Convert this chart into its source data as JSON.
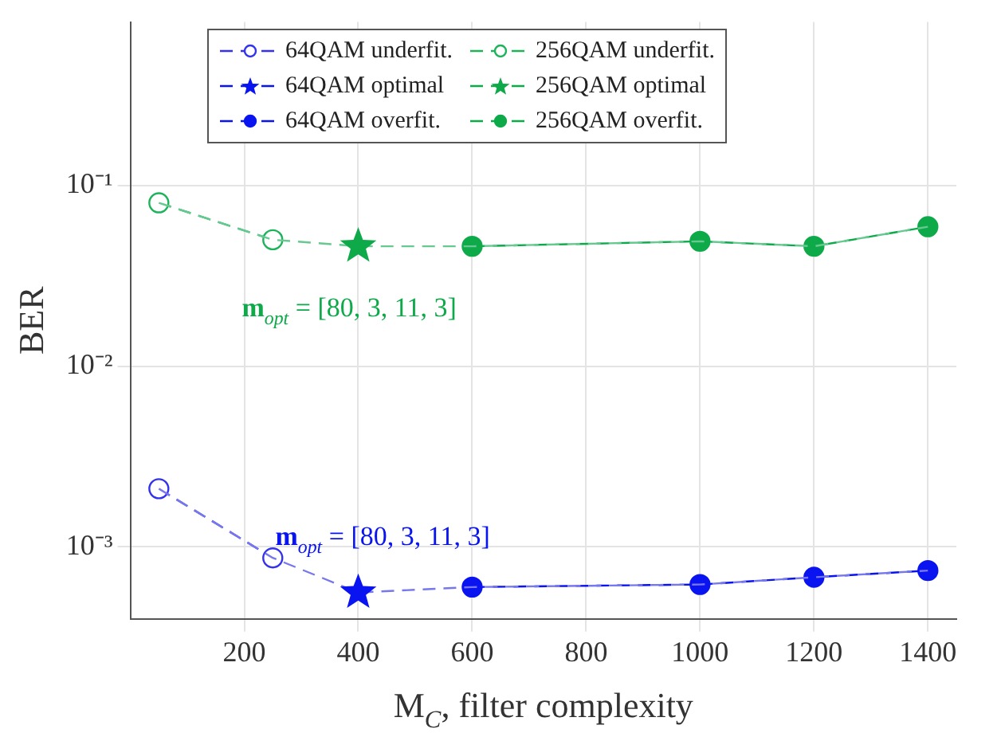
{
  "chart_data": {
    "type": "line",
    "xlabel": "M$_{C}$, filter complexity",
    "ylabel": "BER",
    "log": "y",
    "grid": true,
    "legend": "top",
    "line_style": "dashed",
    "xlim": [
      0,
      1450
    ],
    "xticks": [
      200,
      400,
      600,
      800,
      1000,
      1200,
      1400
    ],
    "ylim": [
      0.0004,
      0.8
    ],
    "yticks": [
      {
        "value": 0.001,
        "label": "10⁻³"
      },
      {
        "value": 0.01,
        "label": "10⁻²"
      },
      {
        "value": 0.1,
        "label": "10⁻¹"
      }
    ],
    "series": [
      {
        "color": "#7777ee",
        "marker": "none",
        "x": [
          50,
          250,
          400,
          600,
          1000,
          1200,
          1400
        ],
        "values": [
          0.0021,
          0.00087,
          0.00056,
          0.0006,
          0.00062,
          0.00068,
          0.00074
        ]
      },
      {
        "color": "#66c990",
        "marker": "none",
        "x": [
          50,
          250,
          400,
          600,
          1000,
          1200,
          1400
        ],
        "values": [
          0.08,
          0.05,
          0.046,
          0.046,
          0.049,
          0.046,
          0.059
        ]
      },
      {
        "name": "64QAM underfit.",
        "color": "#3333ee",
        "marker": "circle",
        "colors": [
          "#ffffff",
          "#ffffff"
        ],
        "x": [
          50,
          250
        ],
        "values": [
          0.0021,
          0.00087
        ]
      },
      {
        "name": "256QAM underfit.",
        "color": "#1db35a",
        "marker": "circle",
        "colors": [
          "#ffffff",
          "#ffffff"
        ],
        "x": [
          50,
          250
        ],
        "values": [
          0.08,
          0.05
        ]
      },
      {
        "name": "64QAM optimal",
        "color": "#0a14f0",
        "marker": "star",
        "x": [
          400
        ],
        "values": [
          0.00056
        ]
      },
      {
        "name": "256QAM optimal",
        "color": "#0eaa4a",
        "marker": "star",
        "x": [
          400
        ],
        "values": [
          0.046
        ]
      },
      {
        "name": "64QAM overfit.",
        "color": "#0a14f0",
        "marker": "circle",
        "x": [
          600,
          1000,
          1200,
          1400
        ],
        "values": [
          0.0006,
          0.00062,
          0.00068,
          0.00074
        ]
      },
      {
        "name": "256QAM overfit.",
        "color": "#0eaa4a",
        "marker": "circle",
        "x": [
          600,
          1000,
          1200,
          1400
        ],
        "values": [
          0.046,
          0.049,
          0.046,
          0.059
        ]
      }
    ],
    "annotations": [
      "m$_{opt}$ = [80, 3, 11, 3]",
      "m$_{opt}$ = [80, 3, 11, 3]"
    ]
  }
}
